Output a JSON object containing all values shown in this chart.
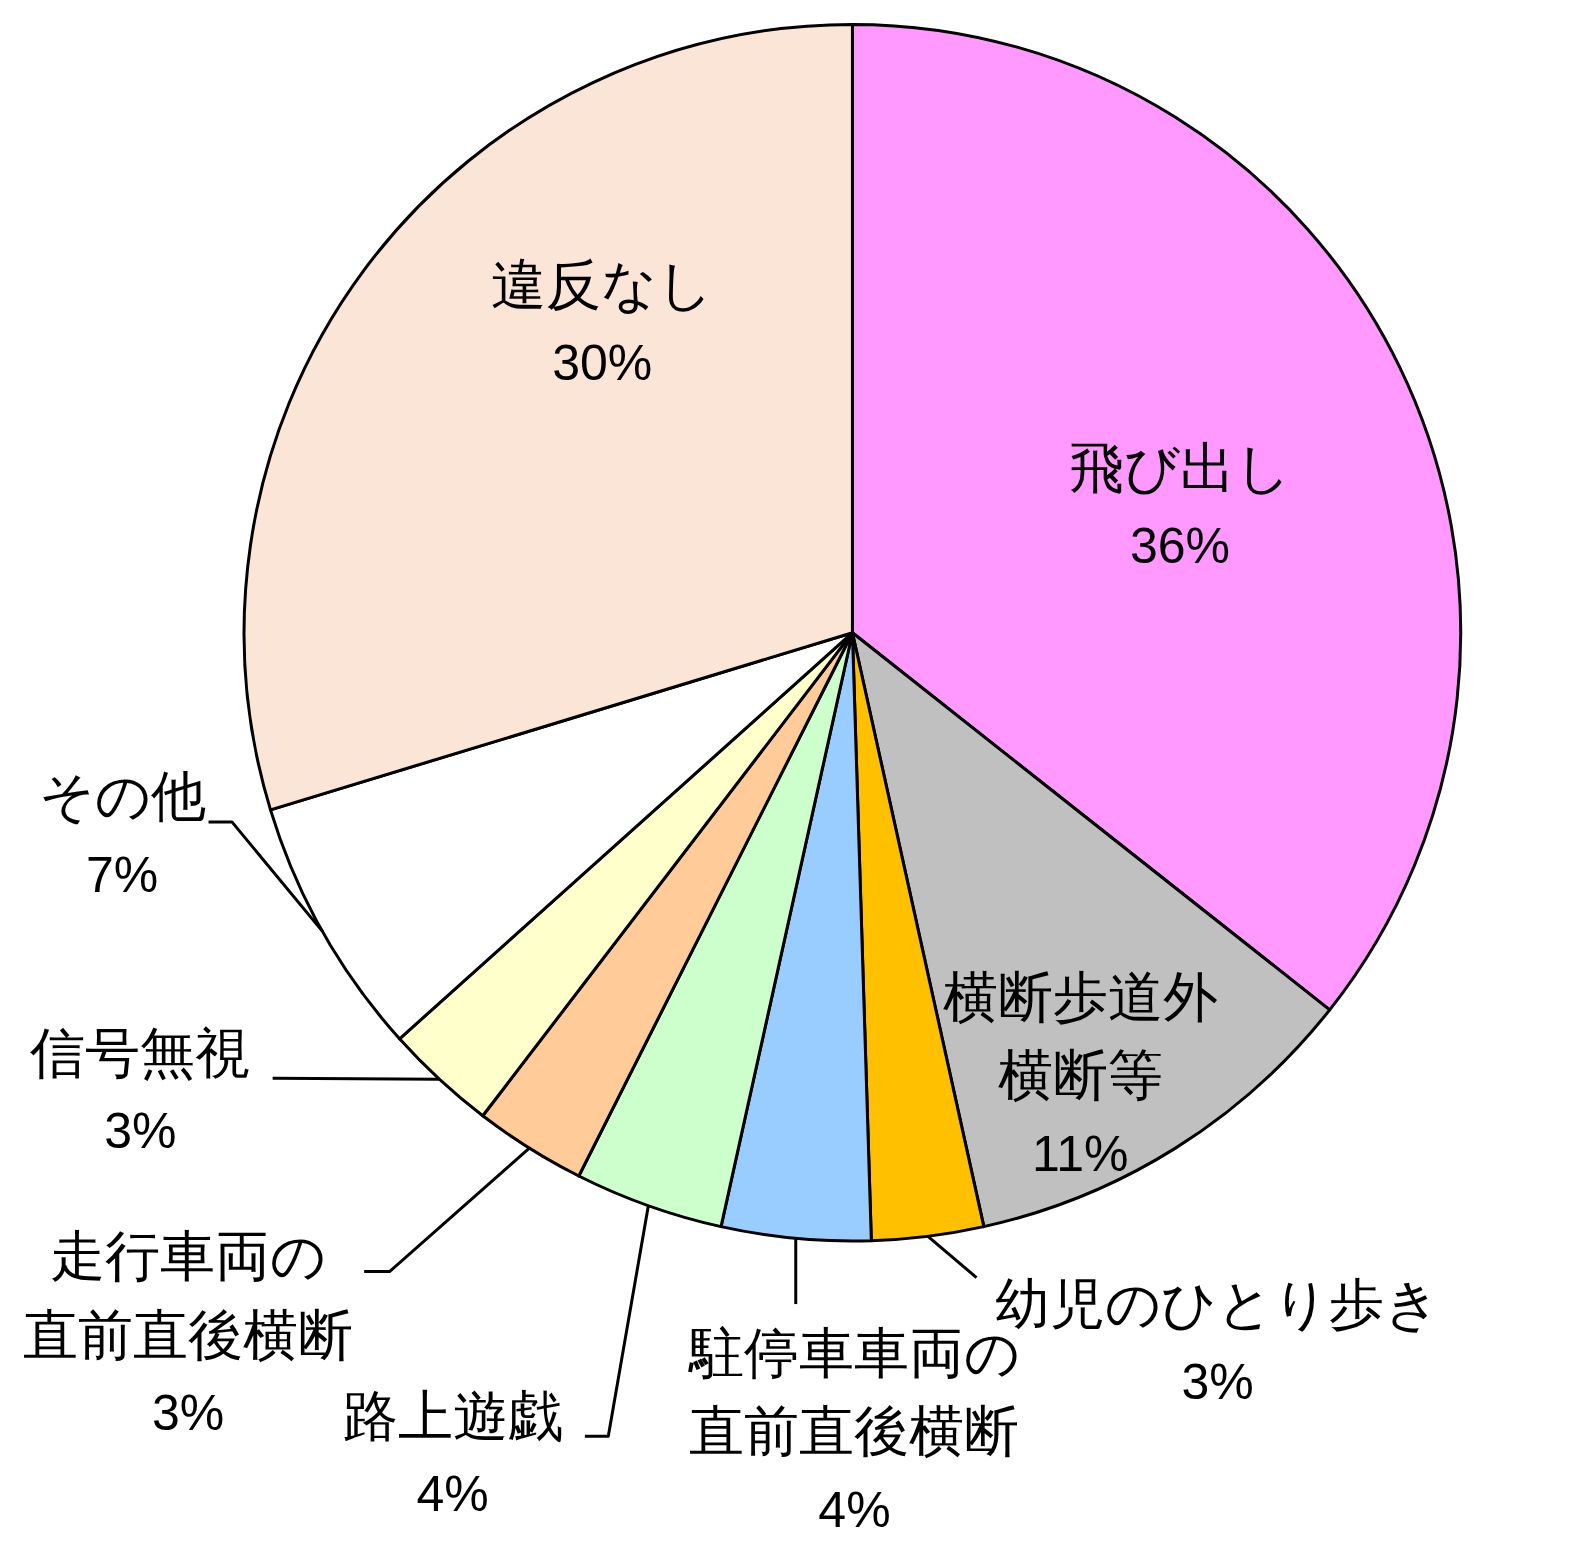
{
  "chart_data": {
    "type": "pie",
    "categories": [
      "飛び出し",
      "横断歩道外横断等",
      "幼児のひとり歩き",
      "駐停車車両の直前直後横断",
      "路上遊戯",
      "走行車両の直前直後横断",
      "信号無視",
      "その他",
      "違反なし"
    ],
    "values": [
      36,
      11,
      3,
      4,
      4,
      3,
      3,
      7,
      30
    ],
    "colors": [
      "#ff99ff",
      "#c0c0c0",
      "#ffc000",
      "#99ccff",
      "#ccffcc",
      "#ffcc99",
      "#ffffcc",
      "#ffffff",
      "#fbe5d6"
    ],
    "value_labels": [
      "36%",
      "11%",
      "3%",
      "4%",
      "4%",
      "3%",
      "3%",
      "7%",
      "30%"
    ]
  }
}
